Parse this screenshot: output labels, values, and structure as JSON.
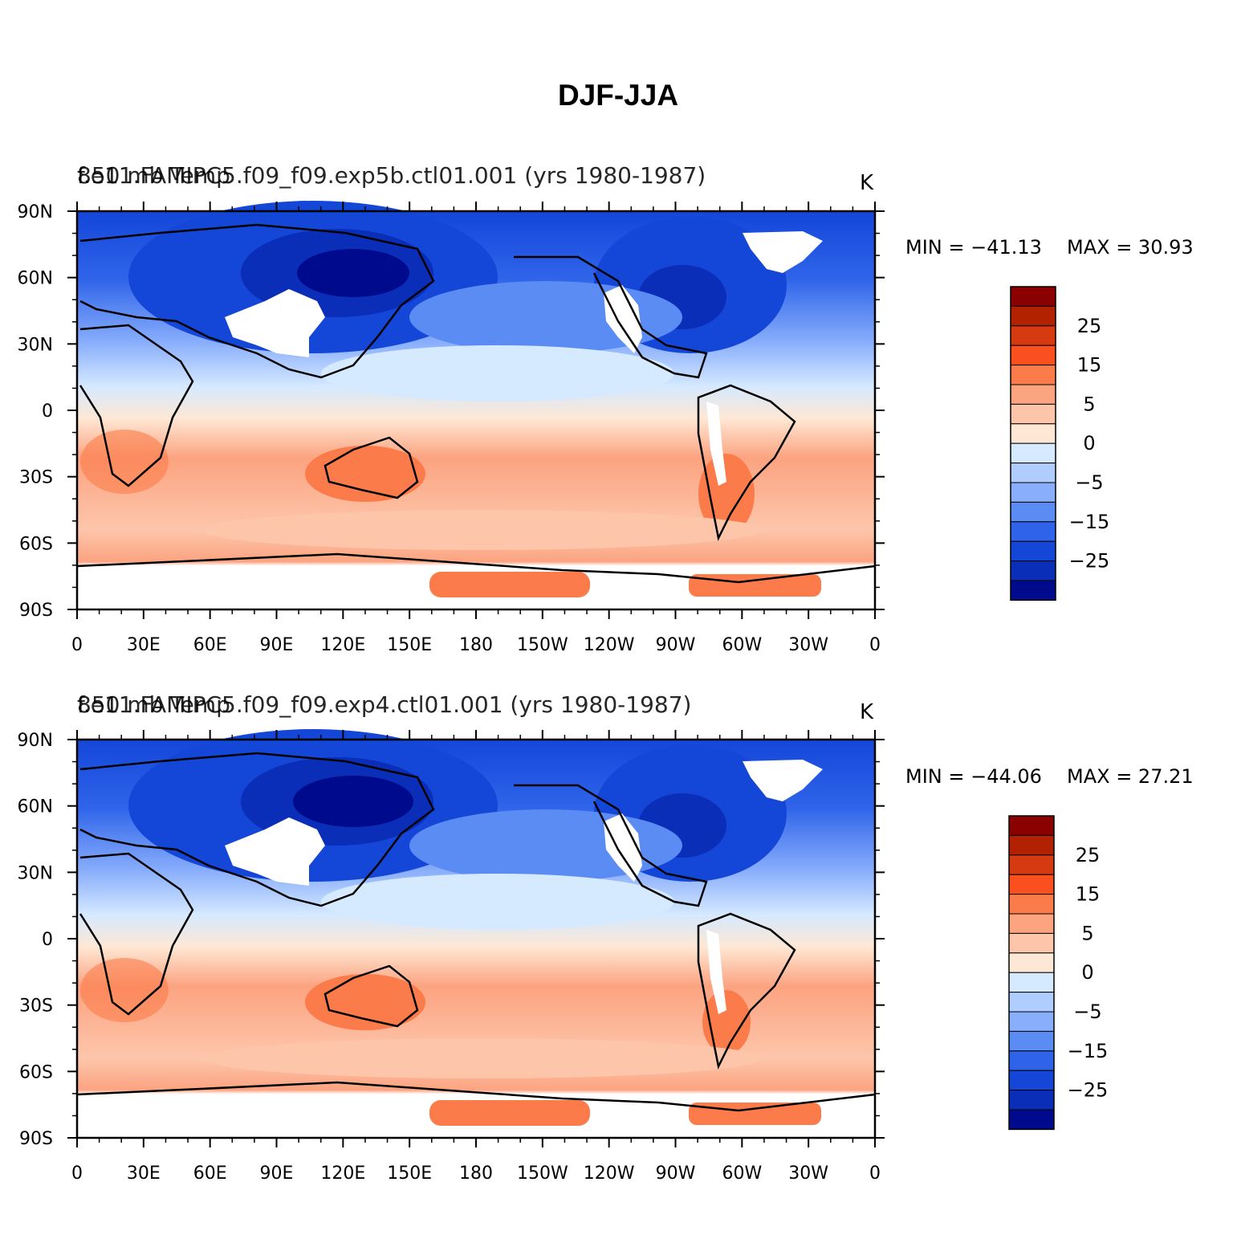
{
  "figure": {
    "title": "DJF-JJA"
  },
  "chart_data": [
    {
      "type": "heatmap",
      "title_left": "850 mb Temp",
      "title_center": "f.e11.FAMIPC5.f09_f09.exp5b.ctl01.001 (yrs 1980-1987)",
      "units": "K",
      "min_label": "MIN = −41.13",
      "max_label": "MAX =   30.93",
      "min": -41.13,
      "max": 30.93,
      "x_ticks": [
        "0",
        "30E",
        "60E",
        "90E",
        "120E",
        "150E",
        "180",
        "150W",
        "120W",
        "90W",
        "60W",
        "30W",
        "0"
      ],
      "y_ticks": [
        "90N",
        "60N",
        "30N",
        "0",
        "30S",
        "60S",
        "90S"
      ],
      "xlim": [
        0,
        360
      ],
      "ylim": [
        -90,
        90
      ],
      "colorbar_labels": [
        "25",
        "15",
        "5",
        "0",
        "−5",
        "−15",
        "−25"
      ]
    },
    {
      "type": "heatmap",
      "title_left": "850 mb Temp",
      "title_center": "f.e11.FAMIPC5.f09_f09.exp4.ctl01.001 (yrs 1980-1987)",
      "units": "K",
      "min_label": "MIN = −44.06",
      "max_label": "MAX =   27.21",
      "min": -44.06,
      "max": 27.21,
      "x_ticks": [
        "0",
        "30E",
        "60E",
        "90E",
        "120E",
        "150E",
        "180",
        "150W",
        "120W",
        "90W",
        "60W",
        "30W",
        "0"
      ],
      "y_ticks": [
        "90N",
        "60N",
        "30N",
        "0",
        "30S",
        "60S",
        "90S"
      ],
      "xlim": [
        0,
        360
      ],
      "ylim": [
        -90,
        90
      ],
      "colorbar_labels": [
        "25",
        "15",
        "5",
        "0",
        "−5",
        "−15",
        "−25"
      ]
    }
  ],
  "colorbar_colors": [
    "#8b0000",
    "#b22200",
    "#d63a10",
    "#fa5020",
    "#fc7b4a",
    "#fca380",
    "#fdc6ab",
    "#fee8d5",
    "#d5e9ff",
    "#b0cdff",
    "#89aefc",
    "#5a8cf4",
    "#2f64ea",
    "#1446d8",
    "#0a2eb8",
    "#000a8c"
  ]
}
